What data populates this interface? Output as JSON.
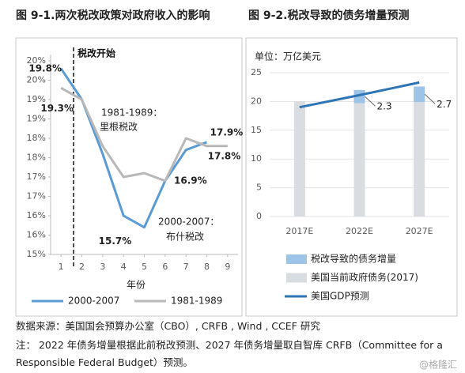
{
  "chart_data": [
    {
      "type": "line",
      "title": "图 9-1.两次税改政策对政府收入的影响",
      "x_label": "年份",
      "x": [
        1,
        2,
        3,
        4,
        5,
        6,
        7,
        8,
        9
      ],
      "xlim": [
        0.5,
        9.5
      ],
      "xticks": [
        1,
        2,
        3,
        4,
        5,
        6,
        7,
        8,
        9
      ],
      "ylim": [
        15,
        20
      ],
      "yticks": [
        {
          "value": 15,
          "label": "15%"
        },
        {
          "value": 15.5,
          "label": "16%"
        },
        {
          "value": 16,
          "label": "16%"
        },
        {
          "value": 16.5,
          "label": "17%"
        },
        {
          "value": 17,
          "label": "17%"
        },
        {
          "value": 17.5,
          "label": "18%"
        },
        {
          "value": 18,
          "label": "18%"
        },
        {
          "value": 18.5,
          "label": "19%"
        },
        {
          "value": 19,
          "label": "19%"
        },
        {
          "value": 19.5,
          "label": "20%"
        },
        {
          "value": 20,
          "label": "20%"
        }
      ],
      "series": [
        {
          "name": "2000-2007",
          "color": "#5b9bd5",
          "values": [
            19.8,
            19.0,
            17.6,
            16.0,
            15.7,
            16.9,
            17.7,
            17.9,
            null
          ],
          "value_labels": [
            "19.8%",
            null,
            null,
            null,
            "15.7%",
            "16.9%",
            null,
            "17.9%",
            null
          ]
        },
        {
          "name": "1981-1989",
          "color": "#b8b8b8",
          "values": [
            19.3,
            19.0,
            17.8,
            17.0,
            17.1,
            16.9,
            18.0,
            17.8,
            17.8
          ],
          "value_labels": [
            "19.3%",
            null,
            null,
            null,
            null,
            null,
            null,
            "17.8%",
            null
          ]
        }
      ],
      "annotations": [
        "税改开始",
        "1981-1989：",
        "里根税改",
        "2000-2007：",
        "布什税改"
      ]
    },
    {
      "type": "bar",
      "title": "图 9-2.税改导致的债务增量预测",
      "y_label": "单位：万亿美元",
      "categories": [
        "2017E",
        "2022E",
        "2027E"
      ],
      "ylim": [
        0,
        25
      ],
      "yticks": [
        0,
        5,
        10,
        15,
        20,
        25
      ],
      "grid": true,
      "stacked": true,
      "series": [
        {
          "name": "税改导致的债务增量",
          "color": "#9dc3e6",
          "values": [
            null,
            2.3,
            2.7
          ]
        },
        {
          "name": "美国当前政府债务(2017)",
          "color": "#d9dce1",
          "values": [
            20.0,
            19.7,
            19.9
          ]
        },
        {
          "name": "美国GDP预测",
          "type": "line",
          "color": "#2e75b6",
          "values": [
            19.0,
            21.1,
            23.3
          ]
        }
      ]
    }
  ],
  "footnotes": {
    "source": "数据来源：美国国会预算办公室（CBO）, CRFB , Wind , CCEF 研究",
    "note": "注：  2022 年债务增量根据此前税改预测、2027 年债务增量取自智库 CRFB（Committee for a Responsible Federal Budget）预测。"
  },
  "watermark": "@格隆汇"
}
